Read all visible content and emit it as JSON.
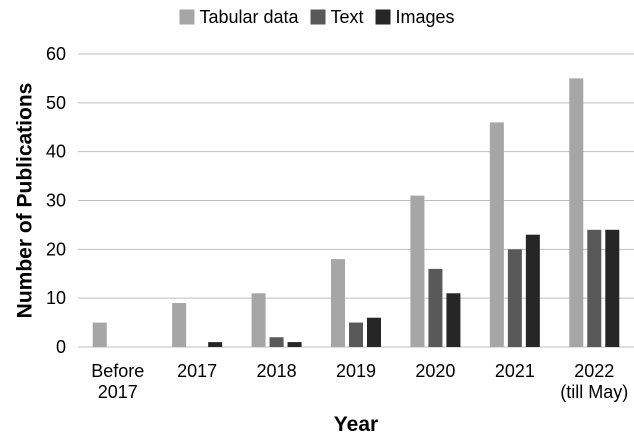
{
  "chart_data": {
    "type": "bar",
    "title": "",
    "xlabel": "Year",
    "ylabel": "Number of Publications",
    "categories": [
      [
        "Before",
        "2017"
      ],
      [
        "2017"
      ],
      [
        "2018"
      ],
      [
        "2019"
      ],
      [
        "2020"
      ],
      [
        "2021"
      ],
      [
        "2022",
        "(till May)"
      ]
    ],
    "series": [
      {
        "name": "Tabular data",
        "color": "#a6a6a6",
        "values": [
          5,
          9,
          11,
          18,
          31,
          46,
          55
        ]
      },
      {
        "name": "Text",
        "color": "#595959",
        "values": [
          0,
          0,
          2,
          5,
          16,
          20,
          24
        ]
      },
      {
        "name": "Images",
        "color": "#262626",
        "values": [
          0,
          1,
          1,
          6,
          11,
          23,
          24
        ]
      }
    ],
    "ylim": [
      0,
      60
    ],
    "yticks": [
      "0",
      "10",
      "20",
      "30",
      "40",
      "50",
      "60"
    ],
    "grid": "horizontal",
    "legend_position": "top"
  }
}
